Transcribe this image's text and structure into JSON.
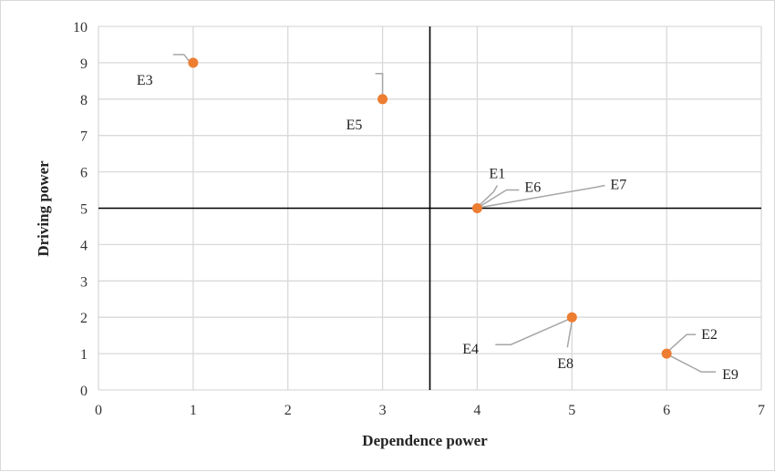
{
  "chart_data": {
    "type": "scatter",
    "xlabel": "Dependence power",
    "ylabel": "Driving power",
    "xlim": [
      0,
      7
    ],
    "ylim": [
      0,
      10
    ],
    "x_ticks": [
      0,
      1,
      2,
      3,
      4,
      5,
      6,
      7
    ],
    "y_ticks": [
      0,
      1,
      2,
      3,
      4,
      5,
      6,
      7,
      8,
      9,
      10
    ],
    "grid": true,
    "divider_x": 3.5,
    "divider_y": 5,
    "marker_color": "#ed7d31",
    "points": [
      {
        "x": 1,
        "y": 9
      },
      {
        "x": 3,
        "y": 8
      },
      {
        "x": 4,
        "y": 5
      },
      {
        "x": 5,
        "y": 2
      },
      {
        "x": 6,
        "y": 1
      }
    ],
    "point_labels": [
      {
        "text": "E3",
        "x": 1,
        "y": 9
      },
      {
        "text": "E5",
        "x": 3,
        "y": 8
      },
      {
        "text": "E1",
        "x": 4,
        "y": 5
      },
      {
        "text": "E6",
        "x": 4,
        "y": 5
      },
      {
        "text": "E7",
        "x": 4,
        "y": 5
      },
      {
        "text": "E4",
        "x": 5,
        "y": 2
      },
      {
        "text": "E8",
        "x": 5,
        "y": 2
      },
      {
        "text": "E2",
        "x": 6,
        "y": 1
      },
      {
        "text": "E9",
        "x": 6,
        "y": 1
      }
    ]
  }
}
